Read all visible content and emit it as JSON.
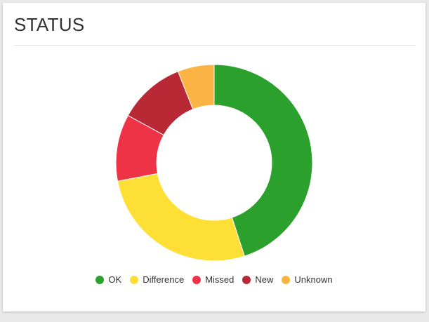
{
  "card": {
    "title": "STATUS"
  },
  "chart_data": {
    "type": "pie",
    "style": "donut",
    "categories": [
      "OK",
      "Difference",
      "Missed",
      "New",
      "Unknown"
    ],
    "values": [
      45,
      27,
      11,
      11,
      6
    ],
    "colors": [
      "#2ca02c",
      "#fddf36",
      "#ef3347",
      "#b82835",
      "#fbb443"
    ],
    "legend_position": "bottom",
    "start": "top",
    "direction": "clockwise"
  }
}
